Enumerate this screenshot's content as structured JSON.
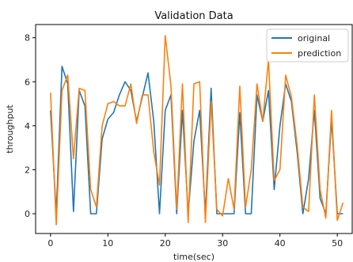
{
  "chart_data": {
    "type": "line",
    "title": "Validation Data",
    "xlabel": "time(sec)",
    "ylabel": "throughput",
    "xlim": [
      -2.6,
      52.6
    ],
    "ylim": [
      -0.9,
      8.6
    ],
    "xticks": [
      0,
      10,
      20,
      30,
      40,
      50
    ],
    "yticks": [
      0,
      2,
      4,
      6,
      8
    ],
    "grid": false,
    "legend_position": "top-right",
    "x": [
      0,
      1,
      2,
      3,
      4,
      5,
      6,
      7,
      8,
      9,
      10,
      11,
      12,
      13,
      14,
      15,
      16,
      17,
      18,
      19,
      20,
      21,
      22,
      23,
      24,
      25,
      26,
      27,
      28,
      29,
      30,
      31,
      32,
      33,
      34,
      35,
      36,
      37,
      38,
      39,
      40,
      41,
      42,
      43,
      44,
      45,
      46,
      47,
      48,
      49,
      50,
      51
    ],
    "series": [
      {
        "name": "original",
        "color": "#1f77b4",
        "values": [
          4.7,
          0.0,
          6.7,
          5.9,
          0.1,
          5.6,
          4.9,
          0.0,
          0.0,
          3.4,
          4.3,
          4.6,
          5.4,
          6.0,
          5.6,
          4.2,
          5.3,
          6.4,
          4.2,
          0.0,
          4.7,
          5.4,
          0.0,
          4.7,
          0.0,
          3.3,
          4.7,
          0.0,
          5.7,
          0.0,
          0.0,
          0.0,
          0.0,
          4.6,
          0.0,
          0.0,
          5.4,
          4.2,
          5.6,
          1.1,
          4.0,
          5.9,
          5.1,
          2.8,
          0.0,
          1.6,
          4.7,
          0.7,
          0.0,
          4.3,
          0.0,
          0.0
        ]
      },
      {
        "name": "prediction",
        "color": "#ff7f0e",
        "values": [
          5.5,
          -0.5,
          5.6,
          6.3,
          2.5,
          5.7,
          5.6,
          1.1,
          0.3,
          4.0,
          5.0,
          5.1,
          4.9,
          4.9,
          5.9,
          4.1,
          5.4,
          5.4,
          2.8,
          1.3,
          8.1,
          5.8,
          0.2,
          5.9,
          -0.4,
          5.9,
          6.0,
          -0.4,
          5.1,
          0.2,
          -0.1,
          1.6,
          0.2,
          5.8,
          0.3,
          2.0,
          5.9,
          4.2,
          7.0,
          1.5,
          2.0,
          6.3,
          5.3,
          3.1,
          0.3,
          0.1,
          5.4,
          1.1,
          -0.2,
          4.7,
          -0.3,
          0.5
        ]
      }
    ]
  }
}
